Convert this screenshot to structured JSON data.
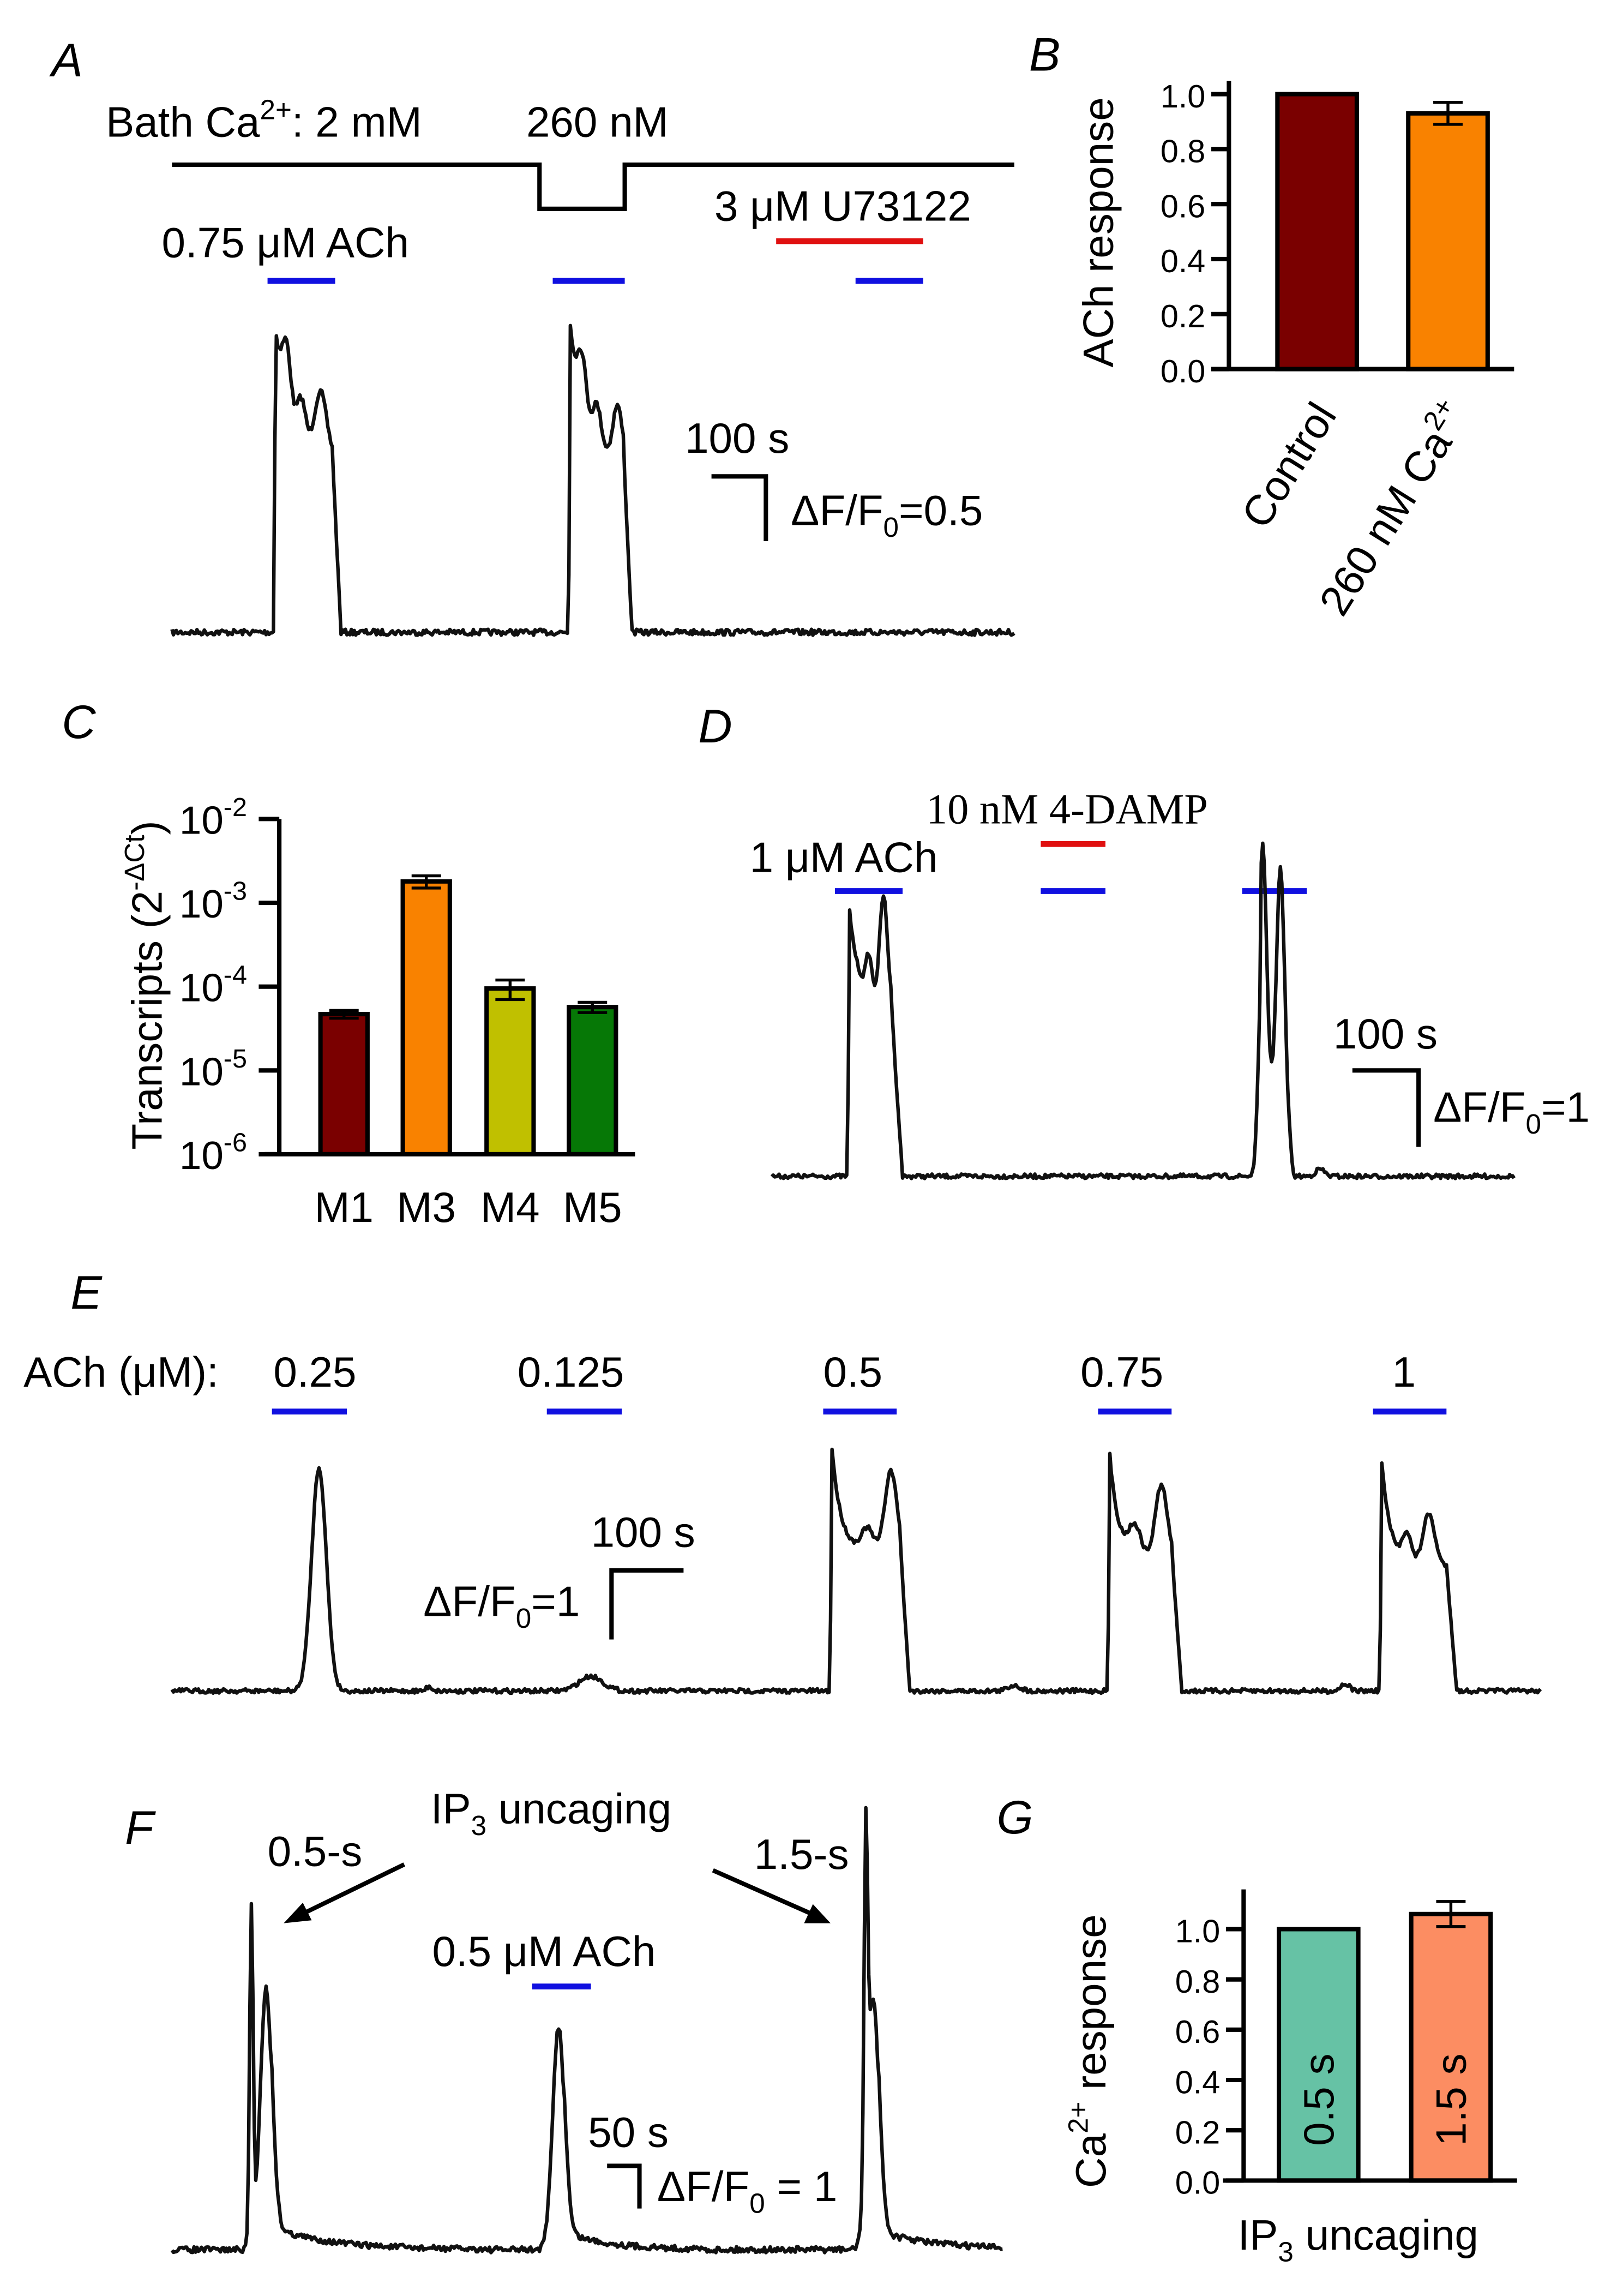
{
  "panels": {
    "A": {
      "label": "A",
      "bath": {
        "prefix": "Bath Ca",
        "sup": "2+",
        "suffix": ": 2 mM",
        "low": "260 nM"
      },
      "drug": "3 μM U73122",
      "agonist": "0.75 μM ACh",
      "scale_time": "100 s",
      "scale_amp": {
        "prefix": "ΔF/F",
        "sub": "0",
        "suffix": "=0.5"
      }
    },
    "D": {
      "label": "D",
      "drug": "10 nM 4-DAMP",
      "agonist": "1 μM ACh",
      "scale_time": "100 s",
      "scale_amp": {
        "prefix": "ΔF/F",
        "sub": "0",
        "suffix": "=1"
      }
    },
    "E": {
      "label": "E",
      "concentration_label": "ACh (μM):",
      "concentrations": [
        "0.25",
        "0.125",
        "0.5",
        "0.75",
        "1"
      ],
      "scale_time": "100 s",
      "scale_amp": {
        "prefix": "ΔF/F",
        "sub": "0",
        "suffix": "=1"
      }
    },
    "F": {
      "label": "F",
      "uncaging": {
        "prefix": "IP",
        "sub": "3",
        "suffix": " uncaging"
      },
      "pulse_short": "0.5-s",
      "pulse_long": "1.5-s",
      "agonist": "0.5 μM ACh",
      "scale_time": "50 s",
      "scale_amp": {
        "prefix": "ΔF/F",
        "sub": "0",
        "suffix": " = 1"
      }
    }
  },
  "colors": {
    "agonist_bar": "#1010e0",
    "drug_bar": "#e01010"
  },
  "chart_data": [
    {
      "panel": "B",
      "label": "B",
      "type": "bar",
      "ylabel": "ACh response",
      "categories": [
        "Control",
        "260 nM Ca2+"
      ],
      "category_parts": [
        {
          "text": "Control",
          "sup": ""
        },
        {
          "text": "260 nM Ca",
          "sup": "2+"
        }
      ],
      "values": [
        1.0,
        0.93
      ],
      "errors": [
        0,
        0.04
      ],
      "colors": [
        "#7a0000",
        "#f98200"
      ],
      "ylim": [
        0,
        1.0
      ],
      "yticks": [
        "0.0",
        "0.2",
        "0.4",
        "0.6",
        "0.8",
        "1.0"
      ]
    },
    {
      "panel": "C",
      "label": "C",
      "type": "bar",
      "ylabel": {
        "text": "Transcripts (2",
        "sup": "-ΔCt",
        "close": ")"
      },
      "yscale": "log",
      "categories": [
        "M1",
        "M3",
        "M4",
        "M5"
      ],
      "values": [
        4.7e-05,
        0.0018,
        9.5e-05,
        5.7e-05
      ],
      "errors": [
        5e-06,
        0.0003,
        2.5e-05,
        8e-06
      ],
      "colors": [
        "#7a0000",
        "#f98200",
        "#c0c000",
        "#067806"
      ],
      "ylim": [
        1e-06,
        0.01
      ],
      "yticks": [
        {
          "base": "10",
          "exp": "-6"
        },
        {
          "base": "10",
          "exp": "-5"
        },
        {
          "base": "10",
          "exp": "-4"
        },
        {
          "base": "10",
          "exp": "-3"
        },
        {
          "base": "10",
          "exp": "-2"
        }
      ]
    },
    {
      "panel": "G",
      "label": "G",
      "type": "bar",
      "ylabel": {
        "pre": "Ca",
        "sup": "2+",
        "post": " response"
      },
      "xlabel": {
        "prefix": "IP",
        "sub": "3",
        "suffix": " uncaging"
      },
      "categories": [
        "0.5 s",
        "1.5 s"
      ],
      "values": [
        1.0,
        1.06
      ],
      "errors": [
        0,
        0.05
      ],
      "colors": [
        "#66c2a5",
        "#fc8d62"
      ],
      "ylim": [
        0,
        1.0
      ],
      "yticks": [
        "0.0",
        "0.2",
        "0.4",
        "0.6",
        "0.8",
        "1.0"
      ]
    }
  ]
}
